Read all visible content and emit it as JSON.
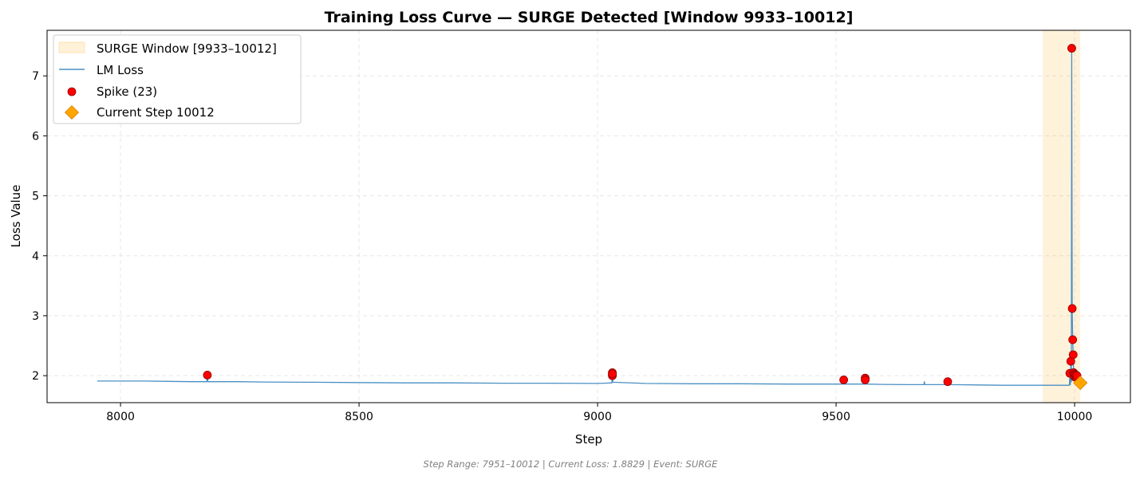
{
  "chart_data": {
    "type": "line",
    "title": "Training Loss Curve — SURGE Detected [Window 9933–10012]",
    "xlabel": "Step",
    "ylabel": "Loss Value",
    "xlim": [
      7846,
      10117
    ],
    "ylim": [
      1.55,
      7.76
    ],
    "xticks": [
      8000,
      8500,
      9000,
      9500,
      10000
    ],
    "yticks": [
      2,
      3,
      4,
      5,
      6,
      7
    ],
    "grid": true,
    "legend_position": "top-left",
    "legend": {
      "window": "SURGE Window [9933–10012]",
      "line": "LM Loss",
      "spikes": "Spike (23)",
      "current": "Current Step 10012"
    },
    "surge_window": {
      "start": 9933,
      "end": 10012
    },
    "series": [
      {
        "name": "LM Loss",
        "x": [
          7951,
          8000,
          8050,
          8100,
          8150,
          8181,
          8182,
          8183,
          8250,
          8300,
          8400,
          8500,
          8600,
          8700,
          8800,
          8900,
          9000,
          9030,
          9031,
          9032,
          9100,
          9200,
          9300,
          9400,
          9500,
          9515,
          9516,
          9517,
          9560,
          9561,
          9562,
          9600,
          9650,
          9684,
          9685,
          9686,
          9700,
          9733,
          9734,
          9735,
          9800,
          9850,
          9900,
          9950,
          9980,
          9989,
          9990,
          9991,
          9992,
          9993,
          9994,
          9995,
          9996,
          9997,
          9998,
          10000,
          10002,
          10005,
          10008,
          10012
        ],
        "y": [
          1.91,
          1.91,
          1.91,
          1.905,
          1.9,
          1.9,
          2.0,
          1.9,
          1.9,
          1.895,
          1.89,
          1.885,
          1.88,
          1.88,
          1.875,
          1.875,
          1.87,
          1.88,
          2.02,
          1.89,
          1.87,
          1.865,
          1.865,
          1.86,
          1.86,
          1.86,
          1.93,
          1.86,
          1.86,
          1.95,
          1.86,
          1.855,
          1.85,
          1.85,
          1.9,
          1.85,
          1.85,
          1.85,
          1.9,
          1.85,
          1.845,
          1.84,
          1.84,
          1.84,
          1.84,
          1.84,
          2.04,
          1.85,
          2.25,
          1.9,
          7.46,
          3.12,
          2.6,
          2.35,
          2.05,
          1.95,
          2.02,
          1.9,
          1.88,
          1.88
        ]
      },
      {
        "name": "Spike (23)",
        "x": [
          8182,
          9031,
          9031,
          9031,
          9031,
          9516,
          9561,
          9561,
          9734,
          9990,
          9992,
          9994,
          9995,
          9996,
          9997,
          9998,
          9999,
          10000,
          10001,
          10002,
          10003,
          10004,
          10005
        ],
        "y": [
          2.01,
          2.05,
          2.02,
          2.0,
          2.03,
          1.93,
          1.96,
          1.93,
          1.9,
          2.04,
          2.24,
          7.46,
          3.12,
          2.6,
          2.35,
          2.05,
          2.03,
          1.98,
          2.02,
          1.99,
          2.01,
          1.97,
          2.0
        ]
      },
      {
        "name": "Current Step 10012",
        "x": [
          10012
        ],
        "y": [
          1.88
        ]
      }
    ],
    "footer": "Step Range: 7951–10012 | Current Loss: 1.8829 | Event: SURGE"
  },
  "colors": {
    "line": "#4a90c4",
    "spike_fill": "#ff0000",
    "spike_edge": "#8b0000",
    "current_fill": "#ffa500",
    "current_edge": "#d98200",
    "window_fill": "#ffa500"
  }
}
